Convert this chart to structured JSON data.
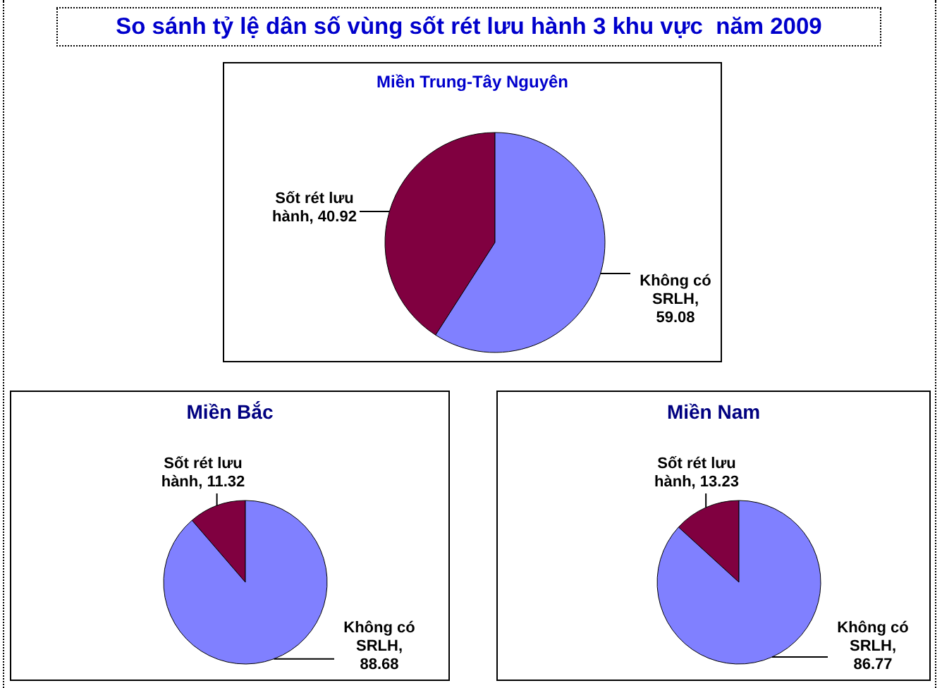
{
  "chart_data": [
    {
      "type": "pie",
      "title": "So sánh tỷ lệ dân số vùng sốt rét lưu hành 3 khu vực  năm 2009",
      "subtitle": "Miền Trung-Tây Nguyên",
      "categories": [
        null,
        null
      ],
      "values": [
        40.92,
        59.08
      ],
      "colors": [
        "#800040",
        "#8080ff"
      ],
      "value_labels": [
        "Sốt rét lưu hành, 40.92",
        "Không có SRLH, 59.08"
      ]
    },
    {
      "type": "pie",
      "title": "Miền Bắc",
      "categories": [
        null,
        null
      ],
      "values": [
        11.32,
        88.68
      ],
      "colors": [
        "#800040",
        "#8080ff"
      ],
      "value_labels": [
        "Sốt rét lưu hành, 11.32",
        "Không có SRLH, 88.68"
      ]
    },
    {
      "type": "pie",
      "title": "Miền Nam",
      "categories": [
        null,
        null
      ],
      "values": [
        13.23,
        86.77
      ],
      "colors": [
        "#800040",
        "#8080ff"
      ],
      "value_labels": [
        "Sốt rét lưu hành, 13.23",
        "Không có SRLH, 86.77"
      ]
    }
  ]
}
